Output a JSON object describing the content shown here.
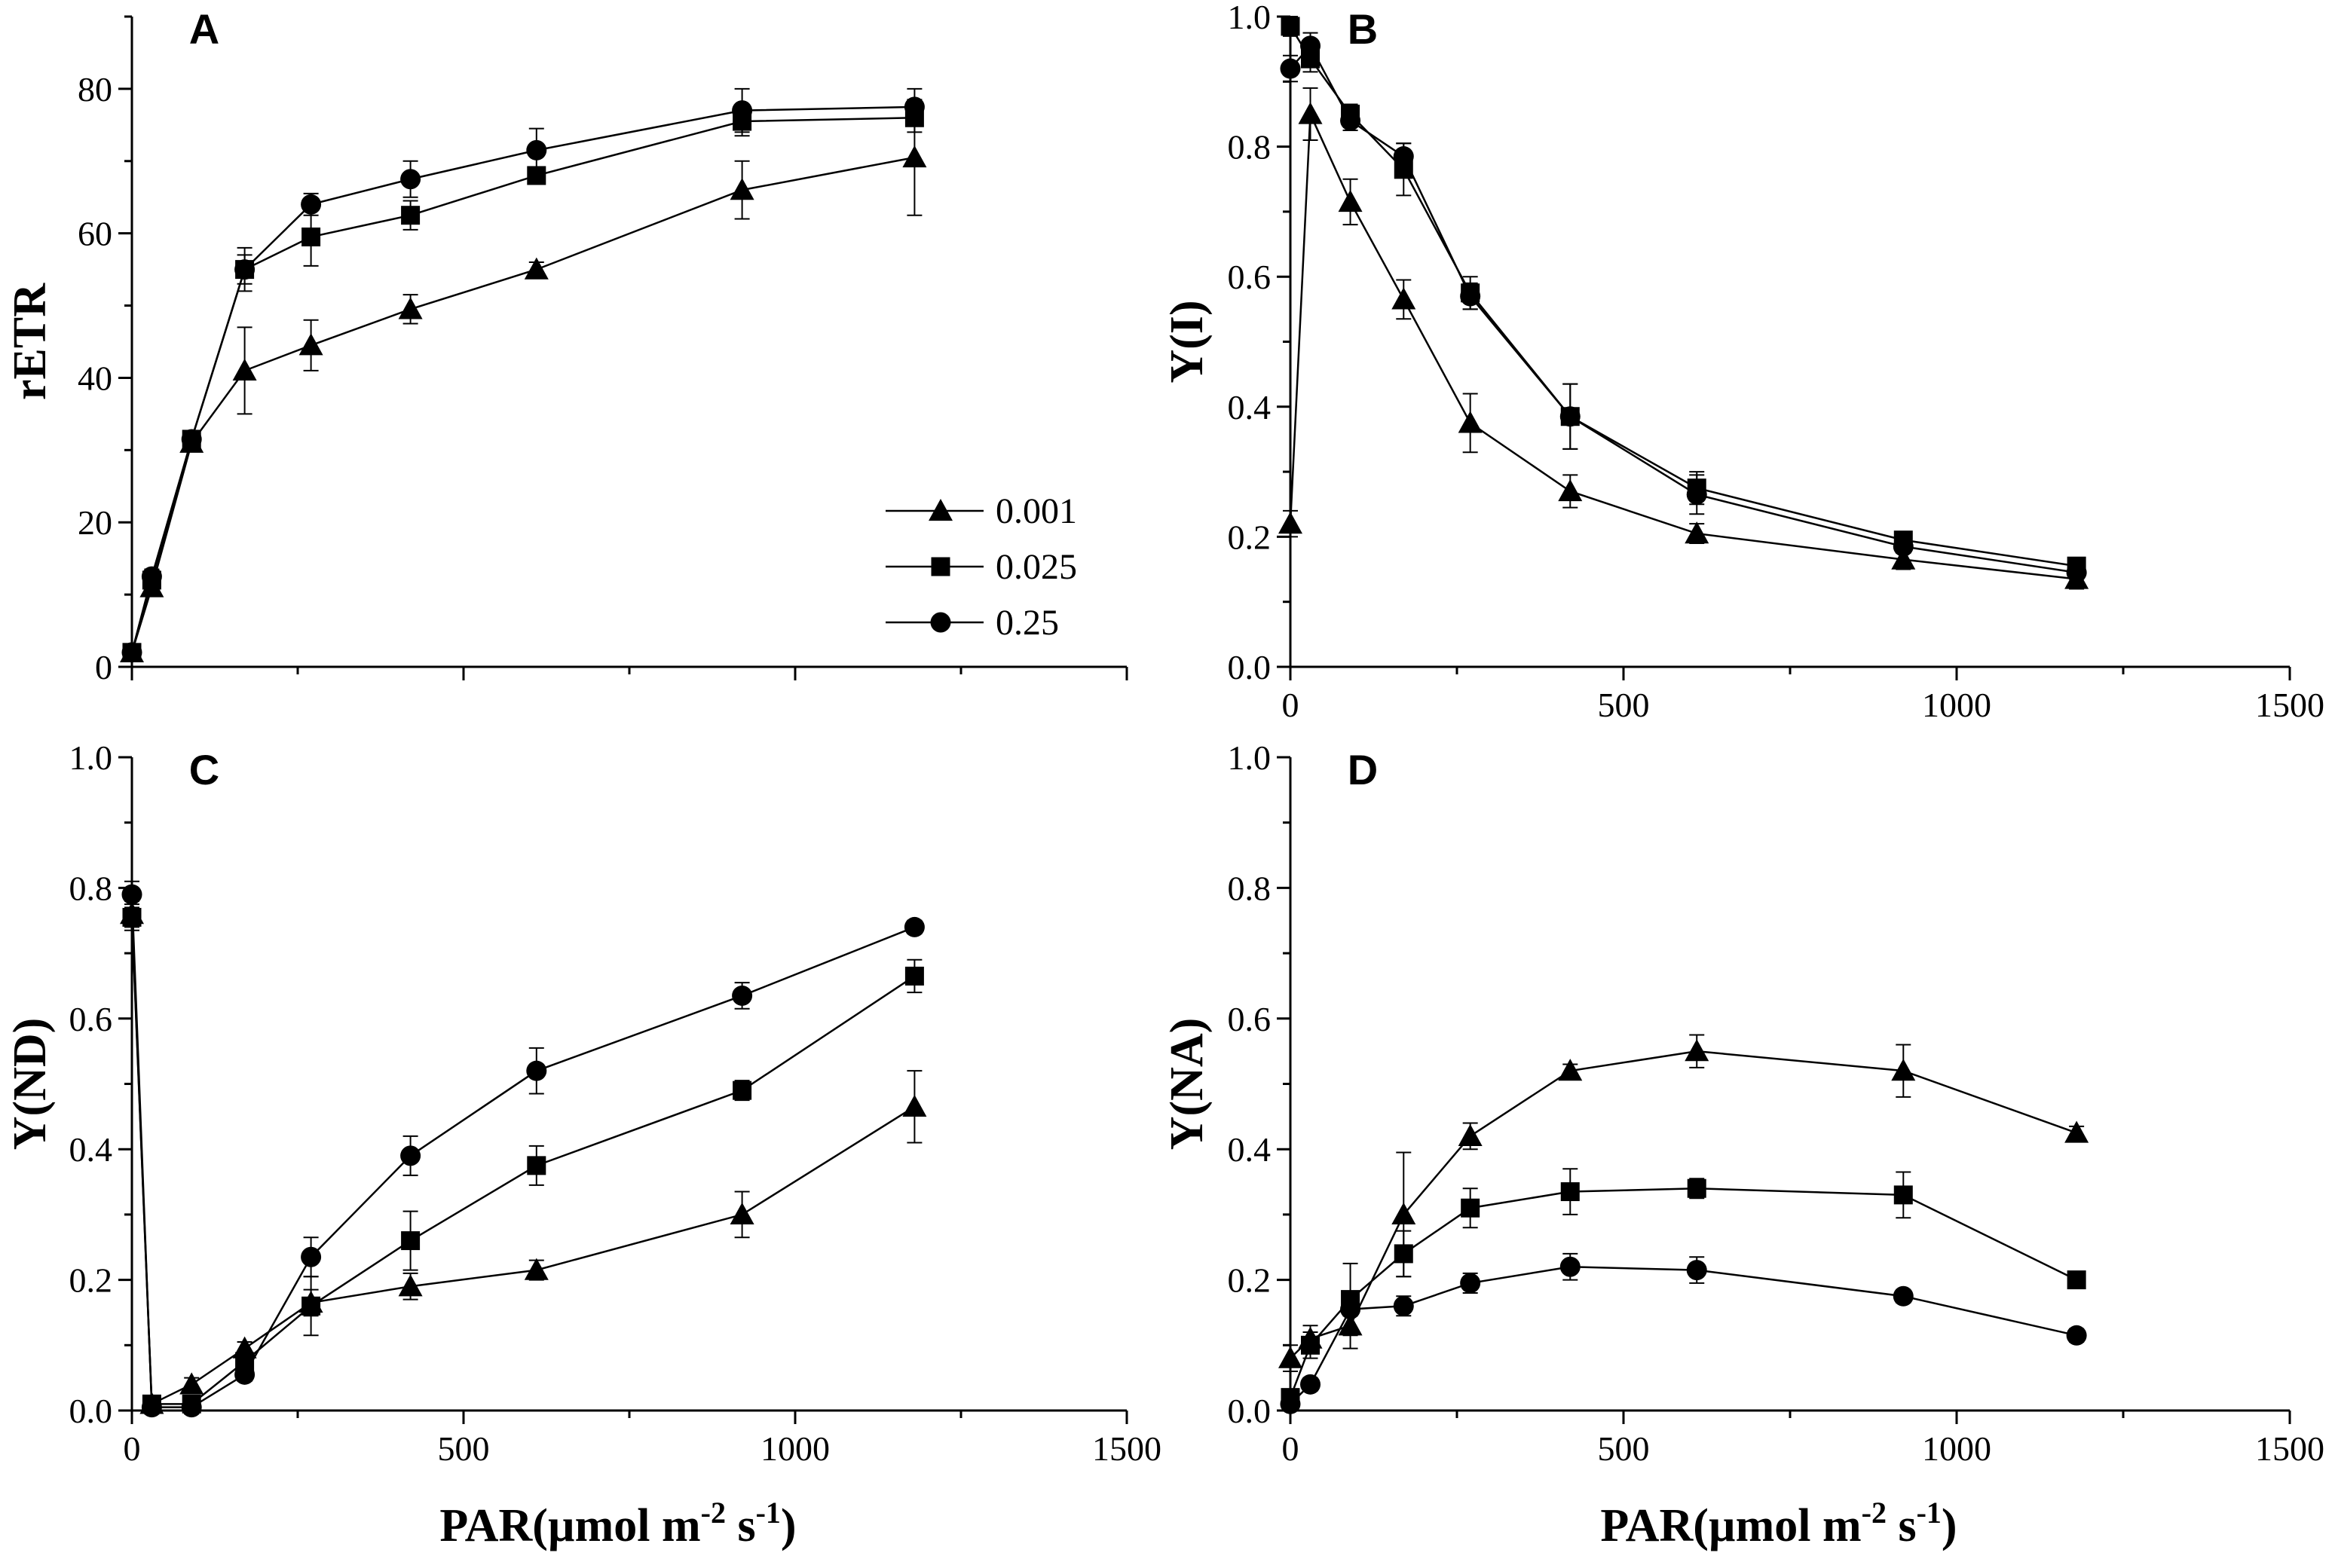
{
  "figure": {
    "xlabel": "PAR(µmol m",
    "xlabel_exp1": "-2",
    "xlabel_mid": " s",
    "xlabel_exp2": "-1",
    "xlabel_close": ")"
  },
  "legend": {
    "entries": [
      {
        "label": "0.001",
        "marker": "triangle"
      },
      {
        "label": "0.025",
        "marker": "square"
      },
      {
        "label": "0.25",
        "marker": "circle"
      }
    ]
  },
  "chart_data": [
    {
      "panel": "A",
      "type": "line",
      "ylabel": "rETR",
      "xlim": [
        0,
        1500
      ],
      "ylim": [
        0,
        90
      ],
      "xticks": [
        0,
        500,
        1000,
        1500
      ],
      "yticks": [
        0,
        20,
        40,
        60,
        80
      ],
      "show_x_tick_labels": false,
      "x": [
        0,
        30,
        90,
        170,
        270,
        420,
        610,
        920,
        1180
      ],
      "series": [
        {
          "name": "0.001",
          "marker": "triangle",
          "values": [
            2,
            11,
            31,
            41,
            44.5,
            49.5,
            55,
            66,
            70.5
          ],
          "errors": [
            1,
            1,
            1,
            6,
            3.5,
            2,
            1,
            4,
            8
          ]
        },
        {
          "name": "0.025",
          "marker": "square",
          "values": [
            2,
            12,
            31.5,
            55,
            59.5,
            62.5,
            68,
            75.5,
            76
          ],
          "errors": [
            1,
            1,
            1,
            2,
            4,
            2,
            1,
            2,
            2
          ]
        },
        {
          "name": "0.25",
          "marker": "circle",
          "values": [
            2,
            12.5,
            31.5,
            55,
            64,
            67.5,
            71.5,
            77,
            77.5
          ],
          "errors": [
            1,
            1,
            1,
            3,
            1.5,
            2.5,
            3,
            3,
            2.5
          ]
        }
      ]
    },
    {
      "panel": "B",
      "type": "line",
      "ylabel": "Y(I)",
      "xlim": [
        0,
        1500
      ],
      "ylim": [
        0,
        1.0
      ],
      "xticks": [
        0,
        500,
        1000,
        1500
      ],
      "yticks": [
        0.0,
        0.2,
        0.4,
        0.6,
        0.8,
        1.0
      ],
      "show_x_tick_labels": true,
      "x": [
        0,
        30,
        90,
        170,
        270,
        420,
        610,
        920,
        1180
      ],
      "series": [
        {
          "name": "0.001",
          "marker": "triangle",
          "values": [
            0.22,
            0.85,
            0.715,
            0.565,
            0.375,
            0.27,
            0.205,
            0.165,
            0.135
          ],
          "errors": [
            0.02,
            0.04,
            0.035,
            0.03,
            0.045,
            0.025,
            0.015,
            0.015,
            0.015
          ]
        },
        {
          "name": "0.025",
          "marker": "square",
          "values": [
            0.985,
            0.935,
            0.85,
            0.765,
            0.575,
            0.385,
            0.275,
            0.195,
            0.155
          ],
          "errors": [
            0.015,
            0.02,
            0.015,
            0.04,
            0.025,
            0.05,
            0.025,
            0.01,
            0.01
          ]
        },
        {
          "name": "0.25",
          "marker": "circle",
          "values": [
            0.92,
            0.955,
            0.84,
            0.785,
            0.57,
            0.385,
            0.265,
            0.185,
            0.145
          ],
          "errors": [
            0.02,
            0.02,
            0.015,
            0.02,
            0.02,
            0.05,
            0.03,
            0.01,
            0.01
          ]
        }
      ]
    },
    {
      "panel": "C",
      "type": "line",
      "ylabel": "Y(ND)",
      "xlim": [
        0,
        1500
      ],
      "ylim": [
        0,
        1.0
      ],
      "xticks": [
        0,
        500,
        1000,
        1500
      ],
      "yticks": [
        0.0,
        0.2,
        0.4,
        0.6,
        0.8,
        1.0
      ],
      "show_x_tick_labels": true,
      "x": [
        0,
        30,
        90,
        170,
        270,
        420,
        610,
        920,
        1180
      ],
      "series": [
        {
          "name": "0.001",
          "marker": "triangle",
          "values": [
            0.76,
            0.01,
            0.04,
            0.095,
            0.165,
            0.19,
            0.215,
            0.3,
            0.465
          ],
          "errors": [
            0.02,
            0.01,
            0.01,
            0.01,
            0.02,
            0.02,
            0.015,
            0.035,
            0.055
          ]
        },
        {
          "name": "0.025",
          "marker": "square",
          "values": [
            0.755,
            0.01,
            0.01,
            0.075,
            0.16,
            0.26,
            0.375,
            0.49,
            0.665
          ],
          "errors": [
            0.02,
            0.01,
            0.01,
            0.01,
            0.045,
            0.045,
            0.03,
            0.015,
            0.025
          ]
        },
        {
          "name": "0.25",
          "marker": "circle",
          "values": [
            0.79,
            0.005,
            0.005,
            0.055,
            0.235,
            0.39,
            0.52,
            0.635,
            0.74
          ],
          "errors": [
            0.02,
            0.01,
            0.01,
            0.01,
            0.03,
            0.03,
            0.035,
            0.02,
            0.01
          ]
        }
      ]
    },
    {
      "panel": "D",
      "type": "line",
      "ylabel": "Y(NA)",
      "xlim": [
        0,
        1500
      ],
      "ylim": [
        0,
        1.0
      ],
      "xticks": [
        0,
        500,
        1000,
        1500
      ],
      "yticks": [
        0.0,
        0.2,
        0.4,
        0.6,
        0.8,
        1.0
      ],
      "show_x_tick_labels": true,
      "x": [
        0,
        30,
        90,
        170,
        270,
        420,
        610,
        920,
        1180
      ],
      "series": [
        {
          "name": "0.001",
          "marker": "triangle",
          "values": [
            0.08,
            0.11,
            0.13,
            0.3,
            0.42,
            0.52,
            0.55,
            0.52,
            0.425
          ],
          "errors": [
            0.02,
            0.02,
            0.035,
            0.095,
            0.02,
            0.01,
            0.025,
            0.04,
            0.01
          ]
        },
        {
          "name": "0.025",
          "marker": "square",
          "values": [
            0.02,
            0.1,
            0.17,
            0.24,
            0.31,
            0.335,
            0.34,
            0.33,
            0.2
          ],
          "errors": [
            0.01,
            0.02,
            0.055,
            0.035,
            0.03,
            0.035,
            0.015,
            0.035,
            0.01
          ]
        },
        {
          "name": "0.25",
          "marker": "circle",
          "values": [
            0.01,
            0.04,
            0.155,
            0.16,
            0.195,
            0.22,
            0.215,
            0.175,
            0.115
          ],
          "errors": [
            0.01,
            0.01,
            0.01,
            0.015,
            0.015,
            0.02,
            0.02,
            0.01,
            0.01
          ]
        }
      ]
    }
  ]
}
